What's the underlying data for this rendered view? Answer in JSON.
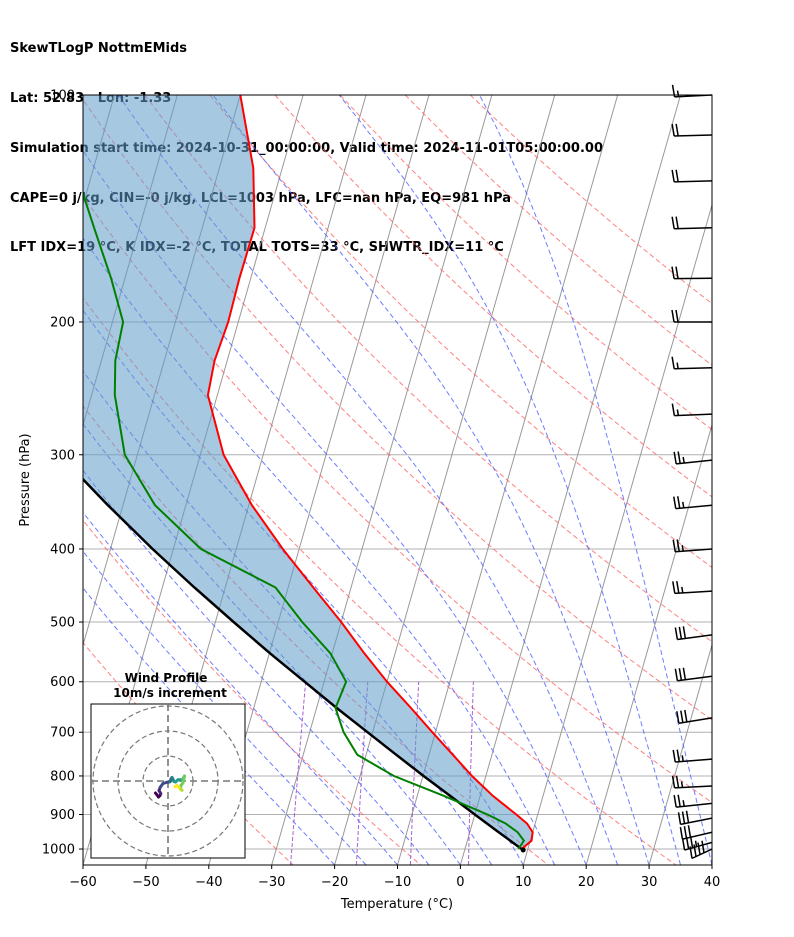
{
  "header": {
    "lines": [
      "SkewTLogP NottmEMids",
      "Lat: 52.83   Lon: -1.33",
      "Simulation start time: 2024-10-31_00:00:00, Valid time: 2024-11-01T05:00:00.00",
      "CAPE=0 j/kg, CIN=-0 j/kg, LCL=1003 hPa, LFC=nan hPa, EQ=981 hPa",
      "LFT IDX=19 °C, K IDX=-2 °C, TOTAL TOTS=33 °C, SHWTR_IDX=11 °C"
    ]
  },
  "chart_data": {
    "type": "line",
    "title": "SkewTLogP NottmEMids",
    "xlabel": "Temperature (°C)",
    "ylabel": "Pressure (hPa)",
    "xlim": [
      -60,
      40
    ],
    "ylim": [
      1050,
      100
    ],
    "y_scale": "log",
    "x_ticks": [
      -60,
      -50,
      -40,
      -30,
      -20,
      -10,
      0,
      10,
      20,
      30,
      40
    ],
    "x_tick_labels": [
      "−60",
      "−50",
      "−40",
      "−30",
      "−20",
      "−10",
      "0",
      "10",
      "20",
      "30",
      "40"
    ],
    "y_ticks": [
      1000,
      900,
      800,
      700,
      600,
      500,
      400,
      300,
      200,
      100
    ],
    "y_tick_labels": [
      "1000",
      "900",
      "800",
      "700",
      "600",
      "500",
      "400",
      "300",
      "200",
      "100"
    ],
    "grid": true,
    "colors": {
      "temperature": "#ff0000",
      "dewpoint": "#008000",
      "parcel": "#000000",
      "shade": "#5e9ac8",
      "dry_adiabat": "#ff6060",
      "moist_adiabat": "#4a5cff",
      "mixing_ratio": "#a050d0",
      "isotherm": "#999999"
    },
    "series": [
      {
        "key": "temperature",
        "p": [
          1000,
          975,
          950,
          925,
          900,
          850,
          800,
          750,
          700,
          650,
          600,
          550,
          500,
          450,
          400,
          350,
          300,
          250,
          225,
          200,
          175,
          150,
          125,
          100
        ],
        "t": [
          9,
          10.2,
          10.0,
          8.7,
          6.6,
          2.0,
          -2.2,
          -6.2,
          -10.5,
          -15.0,
          -20.0,
          -24.9,
          -30.0,
          -36.0,
          -42.6,
          -49.5,
          -56.3,
          -61.5,
          -62.0,
          -61.6,
          -61.8,
          -61.7,
          -64.6,
          -70.0
        ]
      },
      {
        "key": "dewpoint",
        "p": [
          1000,
          975,
          950,
          925,
          900,
          850,
          800,
          750,
          700,
          650,
          600,
          550,
          500,
          450,
          400,
          350,
          300,
          250,
          225,
          200,
          175,
          150,
          125,
          100
        ],
        "t": [
          8.5,
          9.0,
          7.6,
          5.3,
          2.0,
          -5.8,
          -14.6,
          -21.4,
          -24.6,
          -27.0,
          -26.5,
          -30.3,
          -36.2,
          -42.0,
          -55.6,
          -64.9,
          -72.0,
          -76.3,
          -77.8,
          -78.3,
          -82.2,
          -87.2,
          -93.0,
          -95.5
        ]
      },
      {
        "key": "parcel",
        "p": [
          1003,
          1000,
          950,
          900,
          850,
          800,
          750,
          700,
          650,
          600,
          550,
          500,
          450,
          400,
          350,
          300,
          250,
          200,
          150,
          100
        ],
        "t": [
          9.3,
          9.0,
          4.6,
          0.0,
          -4.8,
          -9.9,
          -15.2,
          -20.8,
          -26.8,
          -33.1,
          -39.9,
          -47.1,
          -54.9,
          -63.3,
          -72.4,
          -82.4,
          -93.5,
          -106.0,
          -120.8,
          -139.5
        ]
      }
    ],
    "barbs": {
      "p": [
        100,
        113,
        130,
        150,
        175,
        200,
        230,
        265,
        305,
        350,
        400,
        455,
        520,
        590,
        670,
        760,
        825,
        870,
        910,
        950,
        980,
        1000
      ],
      "speed_kt": [
        15,
        20,
        20,
        20,
        20,
        20,
        15,
        15,
        25,
        25,
        25,
        25,
        30,
        30,
        30,
        25,
        25,
        25,
        30,
        30,
        35,
        40
      ],
      "dir_deg": [
        260,
        265,
        265,
        265,
        268,
        270,
        265,
        262,
        250,
        252,
        255,
        258,
        245,
        245,
        240,
        255,
        260,
        250,
        235,
        230,
        225,
        210
      ]
    },
    "inset": {
      "title": "Wind Profile",
      "subtitle": "10m/s increment",
      "u": [
        -5.0,
        -3.8,
        -3.2,
        -2.9,
        -3.6,
        -3.1,
        -2.0,
        -0.4,
        0.8,
        1.2,
        1.6,
        1.9,
        2.4,
        3.0,
        4.0,
        5.8,
        6.3,
        6.6,
        6.0,
        5.2,
        5.0,
        5.6,
        4.4,
        3.5,
        2.8
      ],
      "v": [
        4.8,
        6.4,
        5.8,
        5.0,
        3.8,
        2.5,
        1.0,
        0.5,
        0.3,
        -0.8,
        -1.4,
        -0.9,
        0.2,
        0.4,
        -0.5,
        -0.5,
        -1.4,
        -2.0,
        0.7,
        1.8,
        3.2,
        3.7,
        2.6,
        1.8,
        2.3
      ]
    }
  }
}
